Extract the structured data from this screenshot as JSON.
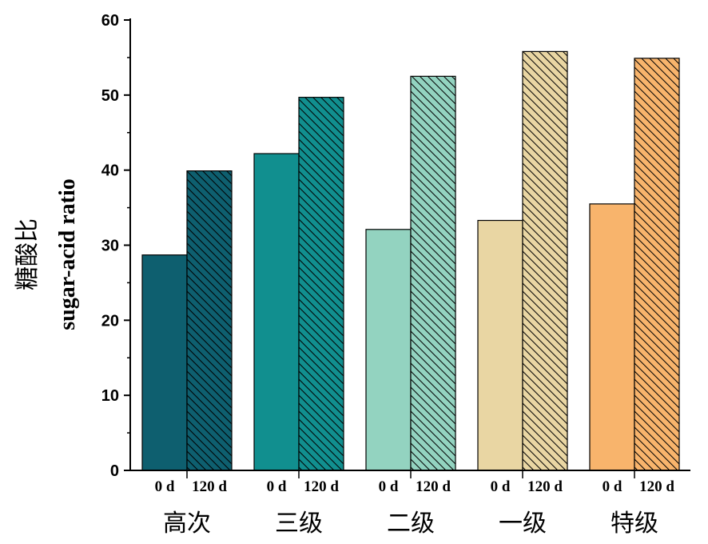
{
  "chart_data": {
    "type": "bar",
    "categories": [
      "高次",
      "三级",
      "二级",
      "一级",
      "特级"
    ],
    "bar_labels": [
      "0 d",
      "120 d"
    ],
    "series": [
      {
        "values": [
          28.7,
          42.2,
          32.1,
          33.3,
          35.5
        ]
      },
      {
        "values": [
          39.9,
          49.7,
          52.5,
          55.8,
          54.9
        ]
      }
    ],
    "colors": [
      "#0e5f6f",
      "#118f8f",
      "#93d3c0",
      "#e9d6a3",
      "#f8b46c"
    ],
    "pattern_on_series": 1,
    "ylabel_cn": "糖酸比",
    "ylabel_en": "sugar-acid ratio",
    "ylim": [
      0,
      60
    ],
    "yticks": [
      0,
      10,
      20,
      30,
      40,
      50,
      60
    ],
    "grid": false
  }
}
